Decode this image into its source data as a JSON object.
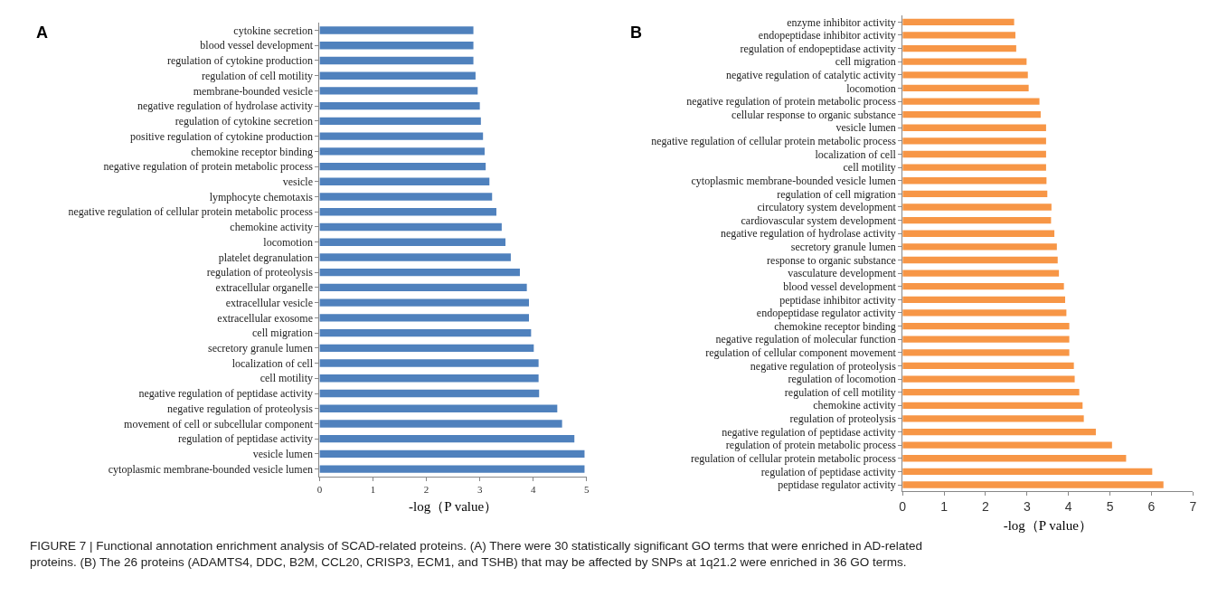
{
  "chart_data": [
    {
      "type": "bar",
      "orientation": "horizontal",
      "title": "A",
      "xlabel": "-log（P value）",
      "color": "#4f81bd",
      "categories": [
        "cytokine secretion",
        "blood vessel development",
        "regulation of cytokine production",
        "regulation of cell motility",
        "membrane-bounded vesicle",
        "negative regulation of hydrolase activity",
        "regulation of cytokine secretion",
        "positive regulation of cytokine production",
        "chemokine receptor binding",
        "negative regulation of protein metabolic process",
        "vesicle",
        "lymphocyte chemotaxis",
        "negative regulation of cellular protein metabolic process",
        "chemokine activity",
        "locomotion",
        "platelet degranulation",
        "regulation of proteolysis",
        "extracellular organelle",
        "extracellular vesicle",
        "extracellular exosome",
        "cell migration",
        "secretory granule lumen",
        "localization of cell",
        "cell motility",
        "negative regulation of peptidase activity",
        "negative regulation of proteolysis",
        "movement of cell or subcellular component",
        "regulation of peptidase activity",
        "vesicle lumen",
        "cytoplasmic membrane-bounded vesicle lumen"
      ],
      "values": [
        2.88,
        2.88,
        2.88,
        2.92,
        2.96,
        3.0,
        3.02,
        3.06,
        3.09,
        3.11,
        3.18,
        3.23,
        3.31,
        3.41,
        3.48,
        3.58,
        3.75,
        3.88,
        3.92,
        3.92,
        3.96,
        4.01,
        4.1,
        4.1,
        4.11,
        4.45,
        4.54,
        4.77,
        4.96,
        4.96
      ],
      "xlim": [
        0,
        5
      ],
      "xticks": [
        0,
        1,
        2,
        3,
        4,
        5
      ]
    },
    {
      "type": "bar",
      "orientation": "horizontal",
      "title": "B",
      "xlabel": "-log（P value）",
      "color": "#f79646",
      "categories": [
        "enzyme inhibitor activity",
        "endopeptidase inhibitor activity",
        "regulation of endopeptidase activity",
        "cell migration",
        "negative regulation of catalytic activity",
        "locomotion",
        "negative regulation of protein metabolic process",
        "cellular response to organic substance",
        "vesicle lumen",
        "negative regulation of cellular protein metabolic process",
        "localization of cell",
        "cell motility",
        "cytoplasmic membrane-bounded vesicle lumen",
        "regulation of cell migration",
        "circulatory system development",
        "cardiovascular system development",
        "negative regulation of hydrolase activity",
        "secretory granule lumen",
        "response to organic substance",
        "vasculature development",
        "blood vessel development",
        "peptidase inhibitor activity",
        "endopeptidase regulator activity",
        "chemokine receptor binding",
        "negative regulation of molecular function",
        "regulation of cellular component movement",
        "negative regulation of proteolysis",
        "regulation of locomotion",
        "regulation of cell motility",
        "chemokine activity",
        "regulation of proteolysis",
        "negative regulation of peptidase activity",
        "regulation of protein metabolic process",
        "regulation of cellular protein metabolic process",
        "regulation of peptidase activity",
        "peptidase regulator activity"
      ],
      "values": [
        2.69,
        2.72,
        2.74,
        2.99,
        3.02,
        3.04,
        3.3,
        3.33,
        3.46,
        3.46,
        3.46,
        3.46,
        3.47,
        3.49,
        3.59,
        3.58,
        3.66,
        3.72,
        3.74,
        3.77,
        3.89,
        3.92,
        3.95,
        4.02,
        4.02,
        4.02,
        4.13,
        4.15,
        4.26,
        4.34,
        4.37,
        4.66,
        5.05,
        5.39,
        6.02,
        6.29
      ],
      "xlim": [
        0,
        7
      ],
      "xticks": [
        0,
        1,
        2,
        3,
        4,
        5,
        6,
        7
      ],
      "annotations": [
        "FIGURE 7 | Functional annotation enrichment analysis of SCAD-related proteins. (A) There were 30 statistically significant GO terms that were enriched in AD-related proteins. (B) The 26 proteins (ADAMTS4, DDC, B2M, CCL20, CRISP3, ECM1, and TSHB) that may be affected by SNPs at 1q21.2 were enriched in 36 GO terms."
      ]
    }
  ]
}
